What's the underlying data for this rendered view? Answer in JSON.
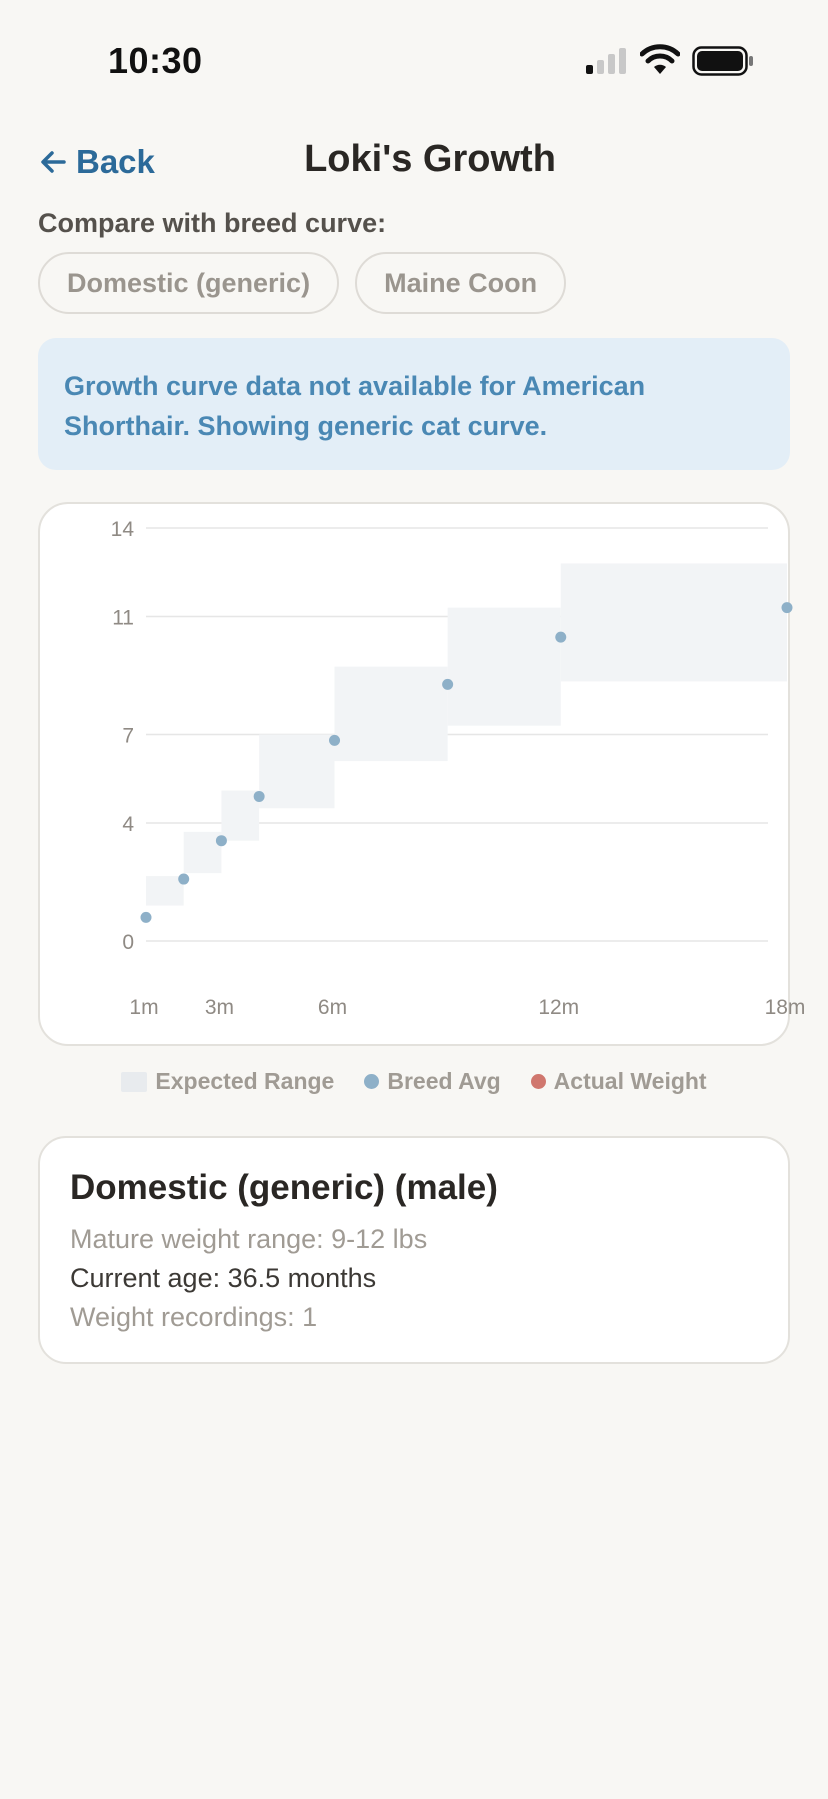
{
  "status_bar": {
    "time": "10:30"
  },
  "nav": {
    "back_label": "Back",
    "title": "Loki's Growth"
  },
  "compare": {
    "label": "Compare with breed curve:",
    "options": [
      "Domestic (generic)",
      "Maine Coon"
    ]
  },
  "notice": "Growth curve data not available for American Shorthair. Showing generic cat curve.",
  "colors": {
    "accent": "#2c6a99",
    "breed_avg": "#8eb0c8",
    "actual_weight": "#d0776e",
    "range_fill": "#f2f4f6"
  },
  "chart_data": {
    "type": "scatter",
    "x_tick_labels": [
      "1m",
      "3m",
      "6m",
      "12m",
      "18m"
    ],
    "x_ticks": [
      1,
      3,
      6,
      12,
      18
    ],
    "y_tick_labels": [
      "14",
      "11",
      "7",
      "4",
      "0"
    ],
    "y_ticks": [
      14,
      11,
      7,
      4,
      0
    ],
    "xlim": [
      1,
      18
    ],
    "ylim": [
      0,
      14
    ],
    "grid": true,
    "ranges": [
      {
        "x0": 1,
        "x1": 2,
        "low": 1.2,
        "high": 2.2
      },
      {
        "x0": 2,
        "x1": 3,
        "low": 2.3,
        "high": 3.7
      },
      {
        "x0": 3,
        "x1": 4,
        "low": 3.4,
        "high": 5.1
      },
      {
        "x0": 4,
        "x1": 6,
        "low": 4.5,
        "high": 7.0
      },
      {
        "x0": 6,
        "x1": 9,
        "low": 6.1,
        "high": 9.3
      },
      {
        "x0": 9,
        "x1": 12,
        "low": 7.3,
        "high": 11.3
      },
      {
        "x0": 12,
        "x1": 18,
        "low": 8.8,
        "high": 12.8
      }
    ],
    "series": [
      {
        "name": "Breed Avg",
        "x": [
          1,
          2,
          3,
          4,
          6,
          9,
          12,
          18
        ],
        "y": [
          0.8,
          2.1,
          3.4,
          4.9,
          6.8,
          8.7,
          10.3,
          11.3
        ]
      },
      {
        "name": "Actual Weight",
        "x": [],
        "y": []
      }
    ],
    "legend": [
      "Expected Range",
      "Breed Avg",
      "Actual Weight"
    ],
    "legend_position": "bottom"
  },
  "summary": {
    "title": "Domestic (generic) (male)",
    "mature_range": "Mature weight range: 9-12 lbs",
    "current_age": "Current age: 36.5 months",
    "recordings": "Weight recordings: 1"
  }
}
